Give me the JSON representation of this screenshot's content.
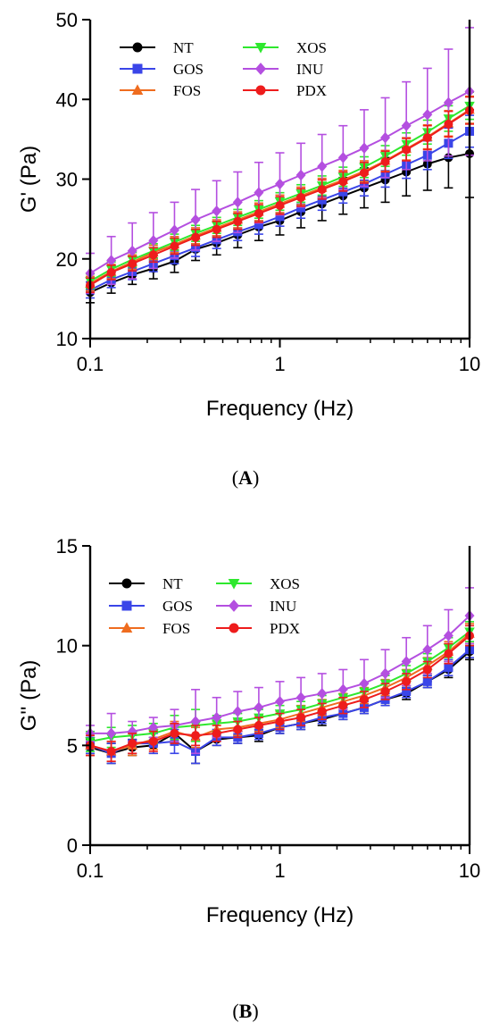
{
  "chart_data": [
    {
      "type": "line",
      "panel_label": "A",
      "xlabel": "Frequency (Hz)",
      "ylabel": "G' (Pa)",
      "xscale": "log",
      "xlim": [
        0.1,
        10
      ],
      "ylim": [
        10,
        50
      ],
      "xticks": [
        0.1,
        1,
        10
      ],
      "xtick_labels": [
        "0.1",
        "1",
        "10"
      ],
      "yticks": [
        10,
        20,
        30,
        40,
        50
      ],
      "ytick_labels": [
        "10",
        "20",
        "30",
        "40",
        "50"
      ],
      "grid": false,
      "legend_position": "top-left",
      "x": [
        0.1,
        0.1292,
        0.1668,
        0.2154,
        0.2783,
        0.3594,
        0.4642,
        0.5995,
        0.7743,
        1.0,
        1.2915,
        1.6681,
        2.1544,
        2.7826,
        3.5938,
        4.6416,
        5.9948,
        7.7426,
        10.0
      ],
      "series": [
        {
          "name": "NT",
          "color": "#000000",
          "marker": "circle",
          "values": [
            15.8,
            17.0,
            18.0,
            18.8,
            19.7,
            21.2,
            22.0,
            23.0,
            24.0,
            24.8,
            25.9,
            26.9,
            27.9,
            28.9,
            29.9,
            30.9,
            31.9,
            32.7,
            33.2
          ],
          "errors": [
            1.3,
            1.3,
            1.2,
            1.3,
            1.4,
            1.4,
            1.5,
            1.6,
            1.7,
            1.8,
            2.0,
            2.1,
            2.3,
            2.5,
            2.8,
            3.0,
            3.3,
            3.8,
            5.5
          ]
        },
        {
          "name": "GOS",
          "color": "#3a45e8",
          "marker": "square",
          "values": [
            16.1,
            17.4,
            18.4,
            19.4,
            20.4,
            21.4,
            22.4,
            23.4,
            24.3,
            25.3,
            26.4,
            27.4,
            28.4,
            29.4,
            30.6,
            31.8,
            33.0,
            34.5,
            36.0
          ],
          "errors": [
            1.0,
            1.0,
            1.0,
            1.0,
            1.0,
            1.1,
            1.1,
            1.1,
            1.2,
            1.2,
            1.3,
            1.3,
            1.4,
            1.5,
            1.6,
            1.7,
            1.8,
            1.9,
            2.0
          ]
        },
        {
          "name": "FOS",
          "color": "#ef6c1f",
          "marker": "triangle-up",
          "values": [
            16.9,
            18.4,
            19.6,
            20.8,
            21.8,
            22.9,
            23.9,
            24.9,
            25.9,
            26.9,
            27.9,
            28.9,
            29.9,
            31.0,
            32.3,
            33.8,
            35.3,
            37.0,
            38.7
          ],
          "errors": [
            0.9,
            0.9,
            0.9,
            0.9,
            1.0,
            1.0,
            1.0,
            1.0,
            1.1,
            1.1,
            1.1,
            1.2,
            1.2,
            1.3,
            1.3,
            1.4,
            1.5,
            1.6,
            1.7
          ]
        },
        {
          "name": "XOS",
          "color": "#2ee82e",
          "marker": "triangle-down",
          "values": [
            17.2,
            18.7,
            19.9,
            21.0,
            22.1,
            23.2,
            24.2,
            25.2,
            26.2,
            27.2,
            28.2,
            29.2,
            30.3,
            31.5,
            32.9,
            34.4,
            35.9,
            37.6,
            39.2
          ],
          "errors": [
            0.9,
            0.9,
            0.9,
            0.9,
            1.0,
            1.0,
            1.0,
            1.0,
            1.1,
            1.1,
            1.1,
            1.2,
            1.2,
            1.3,
            1.3,
            1.4,
            1.5,
            1.6,
            1.7
          ]
        },
        {
          "name": "INU",
          "color": "#b44fe0",
          "marker": "diamond",
          "values": [
            18.2,
            19.8,
            21.0,
            22.3,
            23.6,
            24.9,
            26.0,
            27.1,
            28.3,
            29.4,
            30.5,
            31.6,
            32.7,
            33.9,
            35.2,
            36.7,
            38.1,
            39.6,
            41.0
          ],
          "errors": [
            2.5,
            3.0,
            3.5,
            3.5,
            3.5,
            3.8,
            3.8,
            3.8,
            3.8,
            3.9,
            4.0,
            4.0,
            4.0,
            4.8,
            5.0,
            5.5,
            5.8,
            6.7,
            8.0
          ]
        },
        {
          "name": "PDX",
          "color": "#ee1c1c",
          "marker": "circle",
          "values": [
            16.7,
            18.3,
            19.4,
            20.5,
            21.6,
            22.7,
            23.7,
            24.7,
            25.7,
            26.7,
            27.7,
            28.7,
            29.7,
            30.8,
            32.2,
            33.7,
            35.2,
            36.9,
            38.6
          ],
          "errors": [
            0.9,
            0.9,
            0.9,
            0.9,
            1.0,
            1.0,
            1.0,
            1.0,
            1.1,
            1.1,
            1.1,
            1.2,
            1.2,
            1.3,
            1.3,
            1.4,
            1.5,
            1.6,
            1.7
          ]
        }
      ]
    },
    {
      "type": "line",
      "panel_label": "B",
      "xlabel": "Frequency (Hz)",
      "ylabel": "G'' (Pa)",
      "xscale": "log",
      "xlim": [
        0.1,
        10
      ],
      "ylim": [
        0,
        15
      ],
      "xticks": [
        0.1,
        1,
        10
      ],
      "xtick_labels": [
        "0.1",
        "1",
        "10"
      ],
      "yticks": [
        0,
        5,
        10,
        15
      ],
      "ytick_labels": [
        "0",
        "5",
        "10",
        "15"
      ],
      "grid": false,
      "legend_position": "top-left",
      "x": [
        0.1,
        0.1292,
        0.1668,
        0.2154,
        0.2783,
        0.3594,
        0.4642,
        0.5995,
        0.7743,
        1.0,
        1.2915,
        1.6681,
        2.1544,
        2.7826,
        3.5938,
        4.6416,
        5.9948,
        7.7426,
        10.0
      ],
      "series": [
        {
          "name": "NT",
          "color": "#000000",
          "marker": "circle",
          "values": [
            4.9,
            4.6,
            4.9,
            5.0,
            5.6,
            4.7,
            5.3,
            5.4,
            5.5,
            5.9,
            6.1,
            6.3,
            6.6,
            6.9,
            7.3,
            7.6,
            8.2,
            8.8,
            9.7
          ],
          "errors": [
            0.4,
            0.5,
            0.4,
            0.4,
            0.5,
            0.6,
            0.3,
            0.3,
            0.3,
            0.3,
            0.3,
            0.3,
            0.3,
            0.3,
            0.3,
            0.3,
            0.3,
            0.4,
            0.4
          ]
        },
        {
          "name": "GOS",
          "color": "#3a45e8",
          "marker": "square",
          "values": [
            5.0,
            4.6,
            5.1,
            5.1,
            5.2,
            4.7,
            5.4,
            5.4,
            5.6,
            5.9,
            6.1,
            6.4,
            6.6,
            6.9,
            7.3,
            7.7,
            8.2,
            8.9,
            9.8
          ],
          "errors": [
            0.4,
            0.5,
            0.5,
            0.5,
            0.6,
            0.6,
            0.4,
            0.3,
            0.3,
            0.3,
            0.3,
            0.3,
            0.3,
            0.3,
            0.3,
            0.3,
            0.3,
            0.4,
            0.4
          ]
        },
        {
          "name": "FOS",
          "color": "#ef6c1f",
          "marker": "triangle-up",
          "values": [
            5.0,
            4.7,
            5.0,
            5.3,
            5.7,
            5.4,
            5.8,
            5.9,
            6.1,
            6.3,
            6.6,
            6.9,
            7.2,
            7.5,
            7.9,
            8.4,
            9.0,
            9.7,
            10.6
          ],
          "errors": [
            0.5,
            0.5,
            0.5,
            0.5,
            0.5,
            0.5,
            0.4,
            0.4,
            0.4,
            0.4,
            0.4,
            0.4,
            0.4,
            0.4,
            0.4,
            0.4,
            0.4,
            0.5,
            0.5
          ]
        },
        {
          "name": "XOS",
          "color": "#2ee82e",
          "marker": "triangle-down",
          "values": [
            5.2,
            5.4,
            5.5,
            5.6,
            5.9,
            6.0,
            6.1,
            6.2,
            6.4,
            6.6,
            6.8,
            7.1,
            7.4,
            7.7,
            8.1,
            8.6,
            9.2,
            9.9,
            10.7
          ],
          "errors": [
            0.5,
            0.5,
            0.5,
            0.5,
            0.6,
            0.8,
            0.4,
            0.4,
            0.4,
            0.4,
            0.4,
            0.4,
            0.4,
            0.4,
            0.4,
            0.4,
            0.4,
            0.5,
            0.5
          ]
        },
        {
          "name": "INU",
          "color": "#b44fe0",
          "marker": "diamond",
          "values": [
            5.6,
            5.6,
            5.7,
            5.9,
            6.0,
            6.2,
            6.4,
            6.7,
            6.9,
            7.2,
            7.4,
            7.6,
            7.8,
            8.1,
            8.6,
            9.2,
            9.8,
            10.5,
            11.5
          ],
          "errors": [
            0.4,
            1.0,
            0.5,
            0.5,
            0.8,
            1.6,
            1.0,
            1.0,
            1.0,
            1.0,
            1.0,
            1.0,
            1.0,
            1.2,
            1.2,
            1.2,
            1.2,
            1.3,
            1.4
          ]
        },
        {
          "name": "PDX",
          "color": "#ee1c1c",
          "marker": "circle",
          "values": [
            5.0,
            4.7,
            5.1,
            5.2,
            5.6,
            5.5,
            5.6,
            5.8,
            6.0,
            6.2,
            6.4,
            6.7,
            7.0,
            7.3,
            7.7,
            8.2,
            8.8,
            9.6,
            10.5
          ],
          "errors": [
            0.5,
            0.5,
            0.5,
            0.5,
            0.5,
            0.5,
            0.4,
            0.4,
            0.4,
            0.4,
            0.4,
            0.4,
            0.4,
            0.4,
            0.4,
            0.4,
            0.4,
            0.5,
            0.5
          ]
        }
      ]
    }
  ]
}
